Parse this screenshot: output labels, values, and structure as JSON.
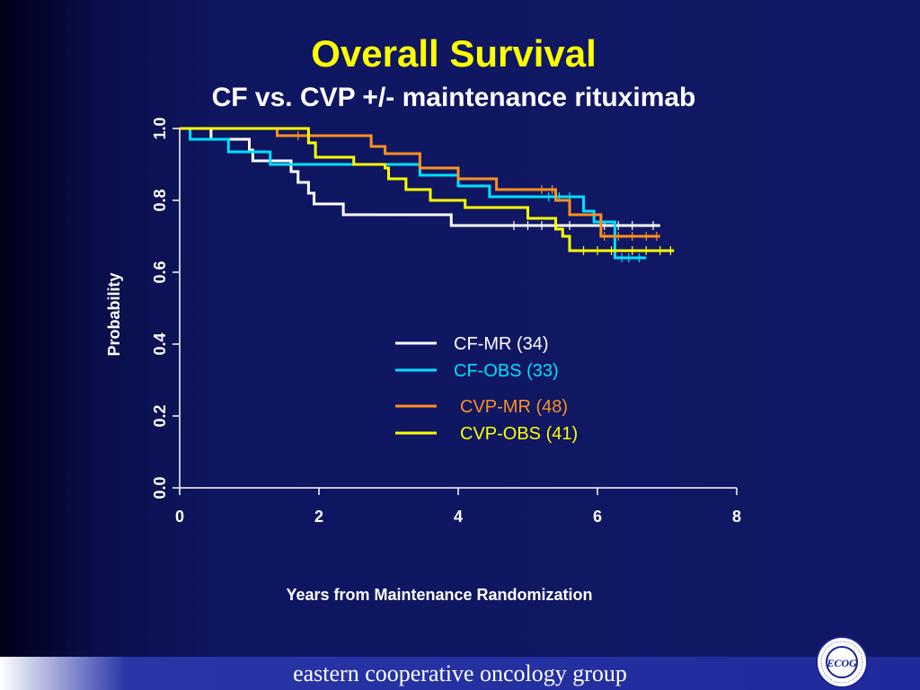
{
  "colors": {
    "title": "#ffff00",
    "text": "#ffffff",
    "axis": "#ffffff",
    "footer_text": "#ffffff"
  },
  "chart_data": {
    "type": "line",
    "step": true,
    "title": "Overall Survival",
    "subtitle": "CF vs. CVP +/- maintenance rituximab",
    "xlabel": "Years from Maintenance Randomization",
    "ylabel": "Probability",
    "xlim": [
      0,
      8
    ],
    "ylim": [
      0,
      1
    ],
    "xticks": [
      "0",
      "2",
      "4",
      "6",
      "8"
    ],
    "yticks": [
      "0.0",
      "0.2",
      "0.4",
      "0.6",
      "0.8",
      "1.0"
    ],
    "legend_position": "center-right",
    "series": [
      {
        "name": "CF-MR (34)",
        "color": "#ffffff",
        "steps": [
          [
            0,
            1.0
          ],
          [
            0.45,
            0.97
          ],
          [
            1.0,
            0.94
          ],
          [
            1.05,
            0.91
          ],
          [
            1.6,
            0.88
          ],
          [
            1.7,
            0.85
          ],
          [
            1.85,
            0.82
          ],
          [
            1.93,
            0.79
          ],
          [
            2.35,
            0.76
          ],
          [
            3.9,
            0.73
          ],
          [
            6.9,
            0.73
          ]
        ],
        "censored": [
          [
            4.8,
            0.73
          ],
          [
            5.0,
            0.73
          ],
          [
            5.2,
            0.73
          ],
          [
            5.4,
            0.73
          ],
          [
            5.6,
            0.73
          ],
          [
            6.1,
            0.73
          ],
          [
            6.3,
            0.73
          ],
          [
            6.5,
            0.73
          ],
          [
            6.8,
            0.73
          ]
        ]
      },
      {
        "name": "CF-OBS (33)",
        "color": "#00e0ff",
        "steps": [
          [
            0,
            1.0
          ],
          [
            0.15,
            0.97
          ],
          [
            0.7,
            0.935
          ],
          [
            1.3,
            0.9
          ],
          [
            3.45,
            0.87
          ],
          [
            4.0,
            0.84
          ],
          [
            4.45,
            0.81
          ],
          [
            5.8,
            0.77
          ],
          [
            5.95,
            0.74
          ],
          [
            6.25,
            0.64
          ],
          [
            6.7,
            0.64
          ]
        ],
        "censored": [
          [
            5.3,
            0.81
          ],
          [
            5.45,
            0.81
          ],
          [
            5.6,
            0.81
          ],
          [
            6.35,
            0.64
          ],
          [
            6.45,
            0.64
          ],
          [
            6.6,
            0.64
          ]
        ]
      },
      {
        "name": "CVP-MR (48)",
        "color": "#ff9020",
        "steps": [
          [
            0,
            1.0
          ],
          [
            1.4,
            0.98
          ],
          [
            2.75,
            0.95
          ],
          [
            2.95,
            0.93
          ],
          [
            3.45,
            0.89
          ],
          [
            4.0,
            0.86
          ],
          [
            4.55,
            0.83
          ],
          [
            5.4,
            0.8
          ],
          [
            5.6,
            0.76
          ],
          [
            6.05,
            0.7
          ],
          [
            6.9,
            0.7
          ]
        ],
        "censored": [
          [
            1.7,
            0.98
          ],
          [
            5.2,
            0.83
          ],
          [
            5.35,
            0.83
          ],
          [
            6.1,
            0.7
          ],
          [
            6.3,
            0.7
          ],
          [
            6.5,
            0.7
          ],
          [
            6.7,
            0.7
          ],
          [
            6.85,
            0.7
          ]
        ]
      },
      {
        "name": "CVP-OBS (41)",
        "color": "#ffff00",
        "steps": [
          [
            0,
            1.0
          ],
          [
            1.85,
            0.96
          ],
          [
            1.95,
            0.92
          ],
          [
            2.5,
            0.9
          ],
          [
            2.95,
            0.89
          ],
          [
            3.0,
            0.86
          ],
          [
            3.25,
            0.83
          ],
          [
            3.6,
            0.8
          ],
          [
            4.1,
            0.78
          ],
          [
            5.0,
            0.75
          ],
          [
            5.4,
            0.72
          ],
          [
            5.5,
            0.7
          ],
          [
            5.6,
            0.66
          ],
          [
            7.1,
            0.66
          ]
        ],
        "censored": [
          [
            5.8,
            0.66
          ],
          [
            6.0,
            0.66
          ],
          [
            6.2,
            0.66
          ],
          [
            6.5,
            0.66
          ],
          [
            6.7,
            0.66
          ],
          [
            6.9,
            0.66
          ],
          [
            7.05,
            0.66
          ]
        ]
      }
    ]
  },
  "footer": {
    "text": "eastern cooperative oncology group",
    "logo_text": "ECOG"
  }
}
